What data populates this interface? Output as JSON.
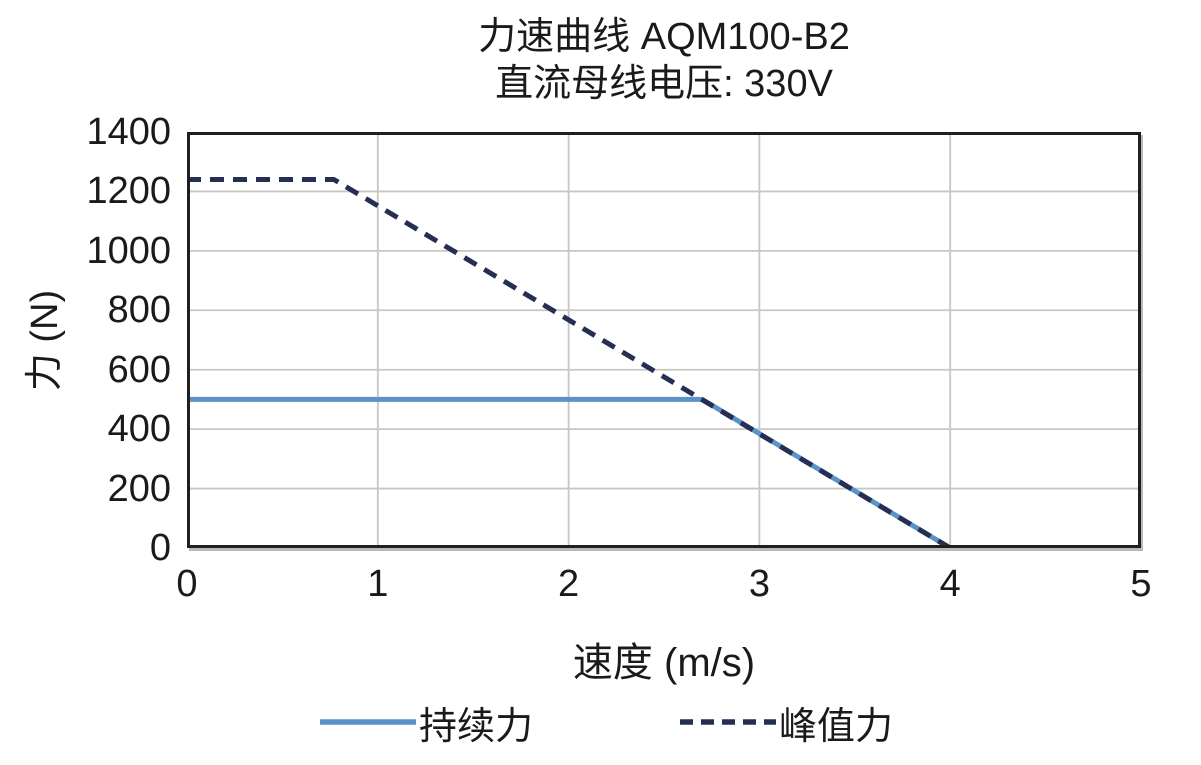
{
  "page": {
    "background": "#ffffff",
    "text_color": "#1a1a1a"
  },
  "chart_data": {
    "type": "line",
    "title": "力速曲线 AQM100-B2",
    "subtitle": "直流母线电压: 330V",
    "xlabel": "速度 (m/s)",
    "ylabel": "力 (N)",
    "xlim": [
      0,
      5
    ],
    "ylim": [
      0,
      1400
    ],
    "x_ticks": [
      0,
      1,
      2,
      3,
      4,
      5
    ],
    "y_ticks": [
      0,
      200,
      400,
      600,
      800,
      1000,
      1200,
      1400
    ],
    "grid": true,
    "grid_color": "#c6c6c6",
    "frame_color": "#1f1f1f",
    "legend_position": "bottom",
    "series": [
      {
        "name": "持续力",
        "style": "solid",
        "color": "#5b93c9",
        "points": [
          [
            0,
            500
          ],
          [
            2.7,
            500
          ],
          [
            4,
            0
          ]
        ]
      },
      {
        "name": "峰值力",
        "style": "dashed",
        "color": "#272e54",
        "points": [
          [
            0,
            1240
          ],
          [
            0.77,
            1240
          ],
          [
            4,
            0
          ]
        ]
      }
    ]
  }
}
